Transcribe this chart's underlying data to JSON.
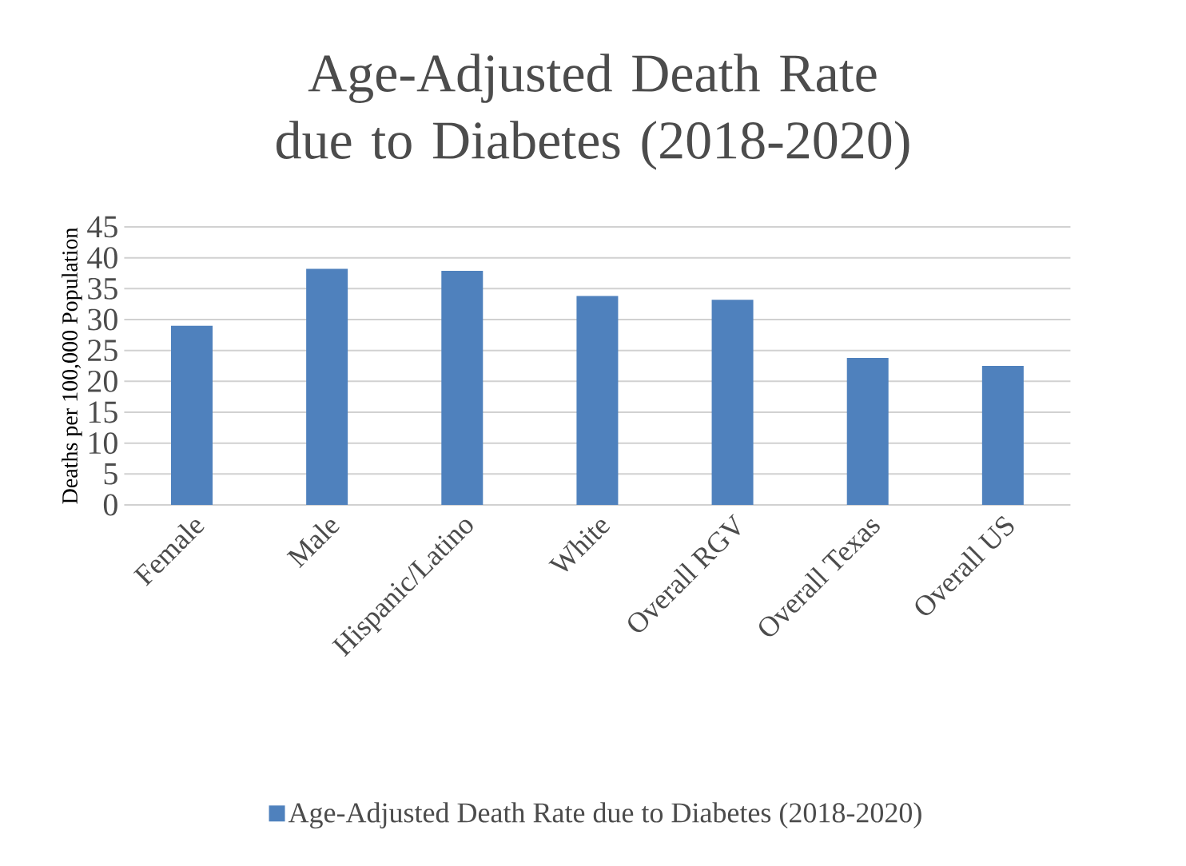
{
  "chart_data": {
    "type": "bar",
    "title": "Age-Adjusted Death Rate due to Diabetes (2018-2020)",
    "ylabel": "Deaths per 100,000 Population",
    "categories": [
      "Female",
      "Male",
      "Hispanic/Latino",
      "White",
      "Overall RGV",
      "Overall Texas",
      "Overall US"
    ],
    "series": [
      {
        "name": "Age-Adjusted Death Rate due to Diabetes (2018-2020)",
        "color": "#4f81bd",
        "values": [
          29,
          38.2,
          37.9,
          33.8,
          33.2,
          23.8,
          22.5
        ]
      }
    ],
    "ylim": [
      0,
      45
    ],
    "yticks": [
      0,
      5,
      10,
      15,
      20,
      25,
      30,
      35,
      40,
      45
    ],
    "grid": "y",
    "legend": "bottom"
  }
}
